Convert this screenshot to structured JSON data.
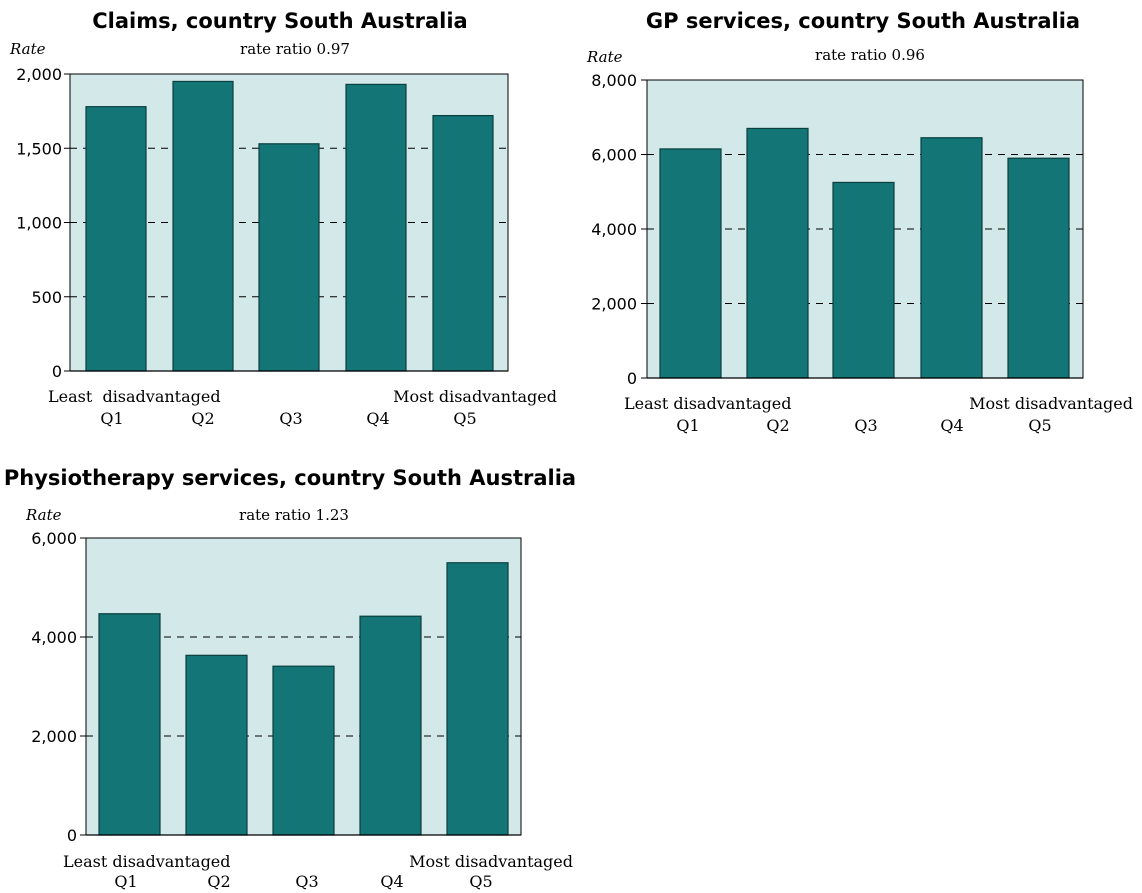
{
  "colors": {
    "plot_background": "#d2e8e9",
    "bar_fill": "#137575",
    "bar_stroke": "#0b3f3f",
    "gridline": "#000000"
  },
  "chart_data": [
    {
      "type": "bar",
      "title": "Claims, country South Australia",
      "subtitle": "rate ratio 0.97",
      "ylabel": "Rate",
      "categories": [
        "Q1",
        "Q2",
        "Q3",
        "Q4",
        "Q5"
      ],
      "values": [
        1780,
        1950,
        1530,
        1930,
        1720
      ],
      "ylim": [
        0,
        2000
      ],
      "yticks": [
        0,
        500,
        1000,
        1500,
        2000
      ],
      "ytick_labels": [
        "0",
        "500",
        "1,000",
        "1,500",
        "2,000"
      ],
      "left_end_label": "Least  disadvantaged",
      "right_end_label": "Most disadvantaged",
      "grid": "dashed horizontal"
    },
    {
      "type": "bar",
      "title": "GP services, country South Australia",
      "subtitle": "rate ratio 0.96",
      "ylabel": "Rate",
      "categories": [
        "Q1",
        "Q2",
        "Q3",
        "Q4",
        "Q5"
      ],
      "values": [
        6150,
        6700,
        5250,
        6450,
        5900
      ],
      "ylim": [
        0,
        8000
      ],
      "yticks": [
        0,
        2000,
        4000,
        6000,
        8000
      ],
      "ytick_labels": [
        "0",
        "2,000",
        "4,000",
        "6,000",
        "8,000"
      ],
      "left_end_label": "Least disadvantaged",
      "right_end_label": "Most disadvantaged",
      "grid": "dashed horizontal"
    },
    {
      "type": "bar",
      "title": "Physiotherapy services, country South Australia",
      "subtitle": "rate ratio 1.23",
      "ylabel": "Rate",
      "categories": [
        "Q1",
        "Q2",
        "Q3",
        "Q4",
        "Q5"
      ],
      "values": [
        4470,
        3630,
        3410,
        4420,
        5500
      ],
      "ylim": [
        0,
        6000
      ],
      "yticks": [
        0,
        2000,
        4000,
        6000
      ],
      "ytick_labels": [
        "0",
        "2,000",
        "4,000",
        "6,000"
      ],
      "left_end_label": "Least disadvantaged",
      "right_end_label": "Most disadvantaged",
      "grid": "dashed horizontal"
    }
  ]
}
